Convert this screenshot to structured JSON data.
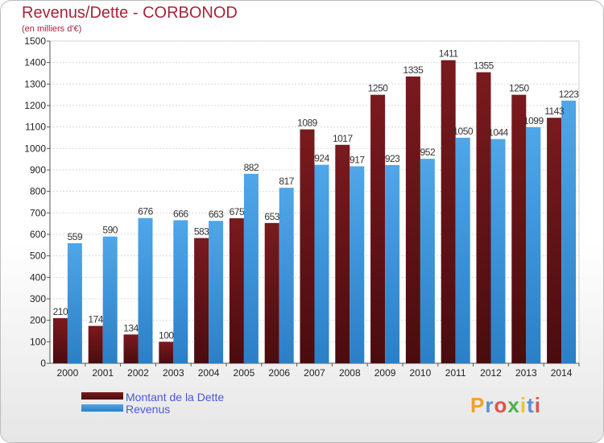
{
  "title": "Revenus/Dette - CORBONOD",
  "subtitle": "(en milliers d'€)",
  "logo_text": "Proxiti",
  "colors": {
    "dette": "#7a1a1e",
    "dette_dark": "#4a0c0f",
    "revenus": "#4fa6e8",
    "revenus_dark": "#2b7fc6",
    "legend_text": "#4b57d6",
    "title": "#a6243a"
  },
  "chart_data": {
    "type": "bar",
    "categories": [
      "2000",
      "2001",
      "2002",
      "2003",
      "2004",
      "2005",
      "2006",
      "2007",
      "2008",
      "2009",
      "2010",
      "2011",
      "2012",
      "2013",
      "2014"
    ],
    "series": [
      {
        "name": "Montant de la Dette",
        "values": [
          210,
          174,
          134,
          100,
          583,
          675,
          653,
          1089,
          1017,
          1250,
          1335,
          1411,
          1355,
          1250,
          1143
        ]
      },
      {
        "name": "Revenus",
        "values": [
          559,
          590,
          676,
          666,
          663,
          882,
          817,
          924,
          917,
          923,
          952,
          1050,
          1044,
          1099,
          1223
        ]
      }
    ],
    "ylim": [
      0,
      1500
    ],
    "yticks": [
      0,
      100,
      200,
      300,
      400,
      500,
      600,
      700,
      800,
      900,
      1000,
      1100,
      1200,
      1300,
      1400,
      1500
    ],
    "grid": true,
    "legend_position": "bottom-left"
  }
}
